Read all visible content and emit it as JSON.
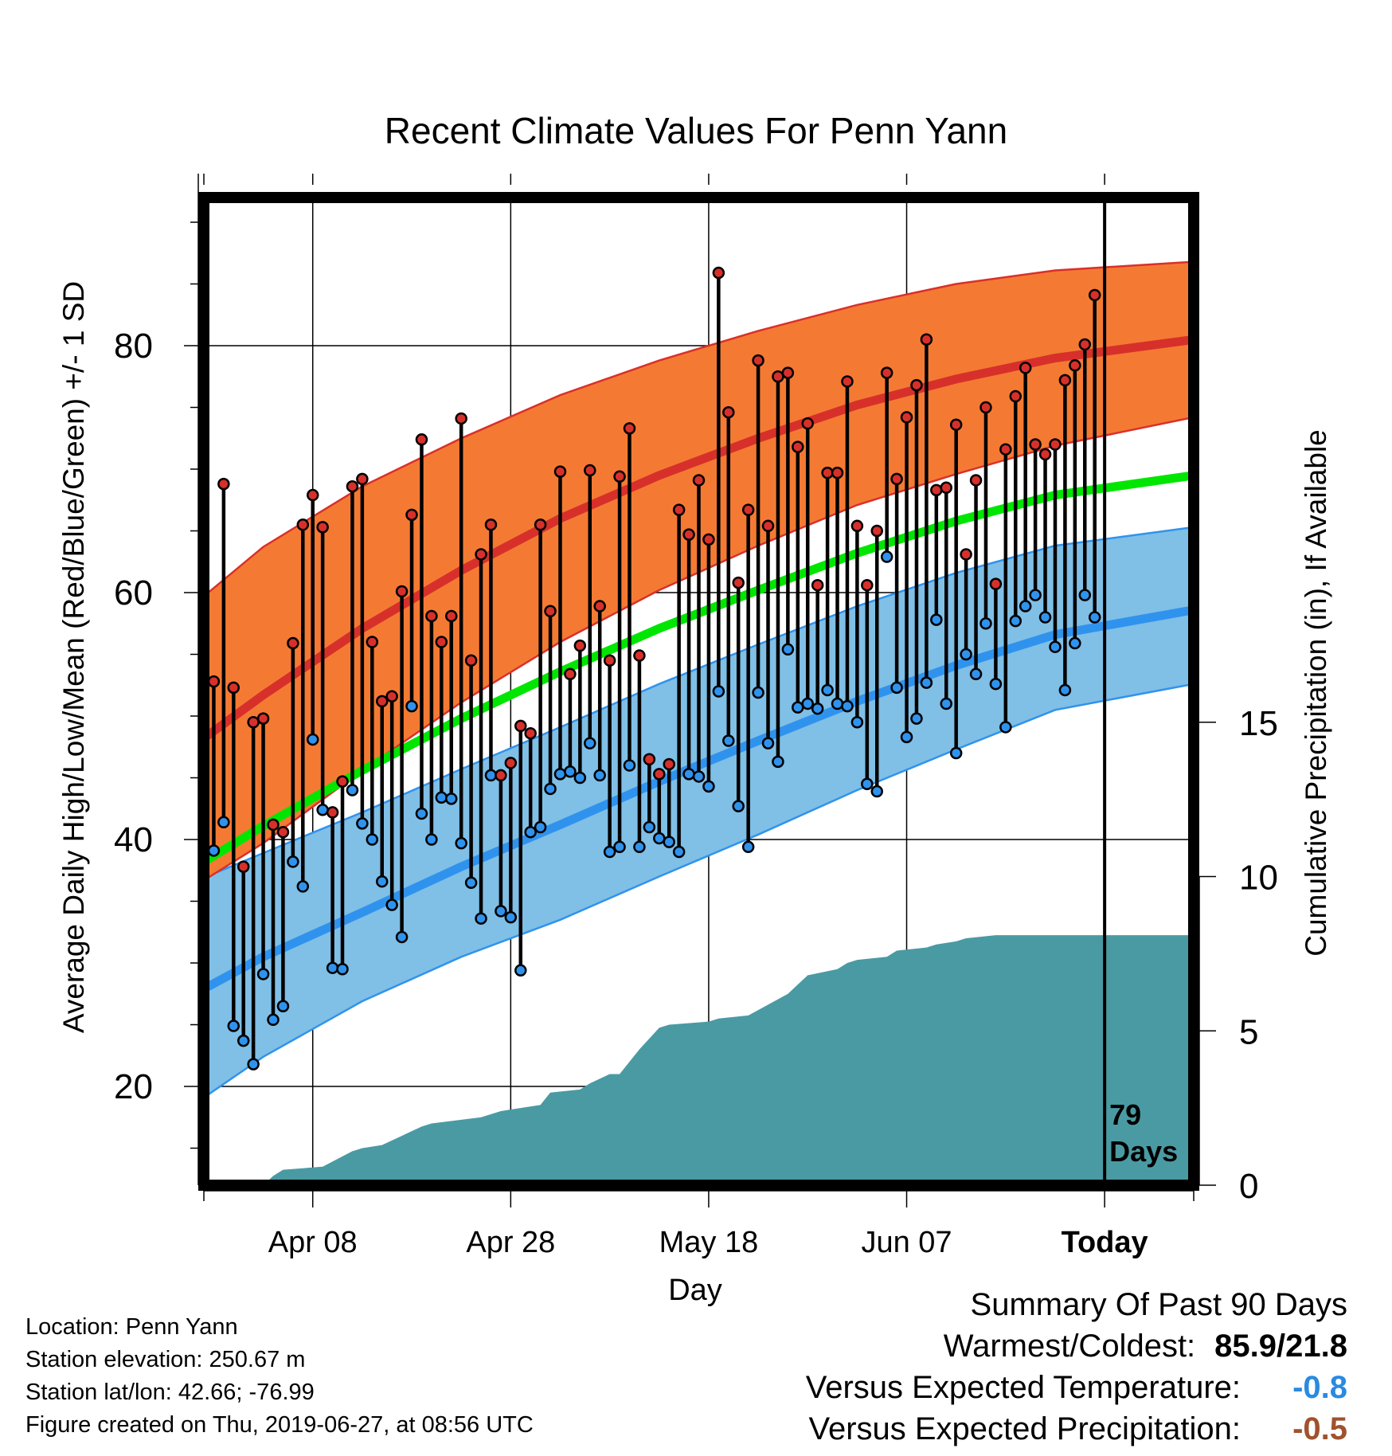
{
  "chart_data": {
    "type": "line",
    "title": "Recent Climate Values For Penn Yann",
    "xlabel": "Day",
    "ylabel": "Average Daily High/Low/Mean (Red/Blue/Green) +/- 1 SD",
    "ylabel_right": "Cumulative Precipitation (in), If Available",
    "x_ticks": [
      {
        "label": "Apr 08",
        "day": 10
      },
      {
        "label": "Apr 28",
        "day": 30
      },
      {
        "label": "May 18",
        "day": 50
      },
      {
        "label": "Jun 07",
        "day": 70
      },
      {
        "label": "Today",
        "day": 90
      }
    ],
    "xlim": [
      -1,
      99
    ],
    "ylim": [
      12,
      92
    ],
    "y_ticks": [
      20,
      40,
      60,
      80
    ],
    "y2_ticks": [
      0,
      5,
      10,
      15
    ],
    "y2_ratio": 0.4,
    "grid": true,
    "today_day": 90,
    "today_annotation": [
      "79",
      "Days"
    ],
    "colors": {
      "high_band": "#f47a33",
      "high_band_edge": "#d9302a",
      "high_mean": "#d7302b",
      "low_band": "#80bfe6",
      "low_band_edge": "#2f93ee",
      "low_mean": "#2f93ee",
      "mean_line": "#00e600",
      "precip": "#4a9aa3",
      "high_marker": "#d7302b",
      "low_marker": "#2f93ee"
    },
    "normals": {
      "days": [
        -1,
        5,
        15,
        25,
        35,
        45,
        55,
        65,
        75,
        85,
        99
      ],
      "high_mean": [
        48.2,
        51.7,
        57.1,
        61.8,
        66.0,
        69.5,
        72.5,
        75.2,
        77.3,
        79.0,
        80.5
      ],
      "high_upper": [
        59.7,
        63.7,
        68.6,
        72.5,
        76.0,
        78.8,
        81.2,
        83.3,
        85.0,
        86.1,
        86.8
      ],
      "high_lower": [
        36.7,
        39.7,
        45.6,
        51.1,
        56.0,
        60.2,
        63.8,
        67.1,
        69.6,
        71.9,
        74.2
      ],
      "mean_line": [
        38.2,
        41.1,
        45.6,
        49.8,
        53.6,
        57.1,
        60.2,
        63.2,
        65.8,
        67.9,
        69.5
      ],
      "low_mean": [
        27.9,
        30.5,
        34.1,
        37.8,
        41.2,
        44.7,
        48.0,
        51.2,
        54.1,
        56.6,
        58.6
      ],
      "low_upper": [
        36.9,
        38.9,
        42.2,
        45.7,
        49.1,
        52.6,
        55.8,
        58.9,
        61.6,
        63.8,
        65.3
      ],
      "low_lower": [
        19.1,
        22.4,
        26.9,
        30.5,
        33.5,
        37.0,
        40.4,
        44.0,
        47.3,
        50.5,
        52.6
      ]
    },
    "series": [
      {
        "name": "High",
        "values": [
          52.8,
          68.8,
          52.3,
          37.8,
          49.5,
          49.8,
          41.2,
          40.6,
          55.9,
          65.5,
          67.9,
          65.3,
          42.2,
          44.7,
          68.6,
          69.2,
          56.0,
          51.2,
          51.6,
          60.1,
          66.3,
          72.4,
          58.1,
          56.0,
          58.1,
          74.1,
          54.5,
          63.1,
          65.5,
          45.2,
          46.2,
          49.2,
          48.6,
          65.5,
          58.5,
          69.8,
          53.4,
          55.7,
          69.9,
          58.9,
          54.5,
          69.4,
          73.3,
          54.9,
          46.5,
          45.3,
          46.1,
          66.7,
          64.7,
          69.1,
          64.3,
          85.9,
          74.6,
          60.8,
          66.7,
          78.8,
          65.4,
          77.5,
          77.8,
          71.8,
          73.7,
          60.6,
          69.7,
          69.7,
          77.1,
          65.4,
          60.6,
          65.0,
          77.8,
          69.2,
          74.2,
          76.8,
          80.5,
          68.3,
          68.5,
          73.6,
          63.1,
          69.1,
          75.0,
          60.7,
          71.6,
          75.9,
          78.2,
          72.0,
          71.2,
          72.0,
          77.2,
          78.4,
          80.1,
          84.1
        ]
      },
      {
        "name": "Low",
        "values": [
          39.1,
          41.4,
          24.9,
          23.7,
          21.8,
          29.1,
          25.4,
          26.5,
          38.2,
          36.2,
          48.1,
          42.4,
          29.6,
          29.5,
          44.0,
          41.3,
          40.0,
          36.6,
          34.7,
          32.1,
          50.8,
          42.1,
          40.0,
          43.4,
          43.3,
          39.7,
          36.5,
          33.6,
          45.2,
          34.2,
          33.7,
          29.4,
          40.6,
          41.0,
          44.1,
          45.3,
          45.5,
          45.0,
          47.8,
          45.2,
          39.0,
          39.4,
          46.0,
          39.4,
          41.0,
          40.1,
          39.8,
          39.0,
          45.3,
          45.1,
          44.3,
          52.0,
          48.0,
          42.7,
          39.4,
          51.9,
          47.8,
          46.3,
          55.4,
          50.7,
          51.0,
          50.6,
          52.1,
          51.0,
          50.8,
          49.5,
          44.5,
          43.9,
          62.9,
          52.3,
          48.3,
          49.8,
          52.7,
          57.8,
          51.0,
          47.0,
          55.0,
          53.4,
          57.5,
          52.6,
          49.1,
          57.7,
          58.9,
          59.8,
          58.0,
          55.6,
          52.1,
          55.9,
          59.8,
          58.0
        ]
      },
      {
        "name": "Cumulative Precipitation",
        "days": [
          -1,
          5,
          6,
          7,
          11,
          14,
          15,
          17,
          21,
          22,
          27,
          29,
          33,
          34,
          37,
          38,
          40,
          41,
          43,
          45,
          46,
          50,
          51,
          54,
          58,
          59,
          60,
          63,
          64,
          65,
          68,
          69,
          72,
          73,
          75,
          76,
          79,
          87,
          90,
          99
        ],
        "values": [
          0,
          0,
          0.3,
          0.5,
          0.6,
          1.1,
          1.2,
          1.3,
          1.9,
          2.0,
          2.2,
          2.4,
          2.6,
          3.0,
          3.1,
          3.3,
          3.6,
          3.6,
          4.4,
          5.1,
          5.2,
          5.3,
          5.4,
          5.5,
          6.2,
          6.5,
          6.8,
          7.0,
          7.2,
          7.3,
          7.4,
          7.6,
          7.7,
          7.8,
          7.9,
          8.0,
          8.1,
          8.1,
          8.1,
          8.1
        ]
      }
    ]
  },
  "footer": {
    "location": "Location: Penn Yann",
    "elevation": "Station elevation: 250.67 m",
    "latlon": "Station lat/lon: 42.66; -76.99",
    "created": "Figure created on Thu, 2019-06-27, at 08:56 UTC"
  },
  "summary": {
    "title": "Summary Of Past 90 Days",
    "warm_cold_label": "Warmest/Coldest:",
    "warm_cold_value": "85.9/21.8",
    "temp_label": "Versus Expected Temperature:",
    "temp_value": "-0.8",
    "temp_color": "#2a8ae0",
    "precip_label": "Versus Expected Precipitation:",
    "precip_value": "-0.5",
    "precip_color": "#a0522d"
  }
}
